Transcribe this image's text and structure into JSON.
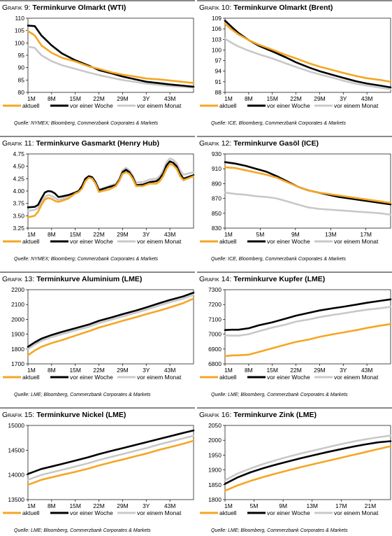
{
  "colors": {
    "aktuell": "#f5a623",
    "woche": "#000000",
    "monat": "#c8c8c8",
    "rule": "#888888"
  },
  "chart_data": [
    {
      "type": "line",
      "prefix": "Grafik 9:",
      "title": "Terminkurve Olmarkt (WTI)",
      "x_ticks": [
        "1M",
        "8M",
        "15M",
        "22M",
        "29M",
        "3Y",
        "43M"
      ],
      "ylim": [
        80,
        110
      ],
      "y_ticks": [
        80,
        85,
        90,
        95,
        100,
        105,
        110
      ],
      "x": [
        1,
        3,
        5,
        8,
        11,
        15,
        19,
        22,
        26,
        29,
        33,
        36,
        40,
        43,
        47,
        50
      ],
      "xlim": [
        1,
        50
      ],
      "series": [
        {
          "name": "aktuell",
          "values": [
            104.8,
            103,
            99,
            96,
            94,
            92.5,
            90.5,
            89.5,
            88,
            87.2,
            86.3,
            85.6,
            85.2,
            84.8,
            84.2,
            83.8
          ]
        },
        {
          "name": "vor einer Woche",
          "values": [
            107,
            106.8,
            103,
            99,
            95.8,
            93,
            90.8,
            89,
            87.6,
            86.4,
            85.2,
            84.3,
            83.7,
            83.2,
            82.7,
            82.3
          ]
        },
        {
          "name": "vor einem Monat",
          "values": [
            98.5,
            98,
            95,
            92.6,
            91,
            89.5,
            88,
            87,
            85.8,
            85,
            84.2,
            83.5,
            83,
            82.6,
            82.2,
            81.9
          ]
        }
      ],
      "source": "Quelle: NYMEX; Bloomberg, Commerzbank Corporates & Markets"
    },
    {
      "type": "line",
      "prefix": "Grafik 10:",
      "title": "Terminkurve Olmarkt (Brent)",
      "x_ticks": [
        "1M",
        "8M",
        "15M",
        "22M",
        "29M",
        "3Y",
        "43M"
      ],
      "ylim": [
        88,
        109
      ],
      "y_ticks": [
        88,
        91,
        94,
        97,
        100,
        103,
        106,
        109
      ],
      "x": [
        1,
        3,
        5,
        8,
        11,
        15,
        19,
        22,
        26,
        29,
        33,
        36,
        40,
        43,
        47,
        50
      ],
      "xlim": [
        1,
        50
      ],
      "series": [
        {
          "name": "aktuell",
          "values": [
            107.4,
            105.8,
            104.4,
            102.8,
            101.5,
            100.1,
            98.6,
            97.6,
            96.2,
            95.3,
            94.3,
            93.5,
            92.6,
            92,
            91.5,
            91
          ]
        },
        {
          "name": "vor einer Woche",
          "values": [
            108.3,
            106.5,
            104.8,
            102.8,
            101.2,
            99.6,
            97.9,
            96.5,
            95,
            94,
            92.9,
            92.1,
            91.1,
            90.5,
            89.9,
            89.4
          ]
        },
        {
          "name": "vor einem Monat",
          "values": [
            103.2,
            102,
            101,
            99.8,
            98.8,
            97.6,
            96.2,
            95.2,
            93.9,
            93.1,
            92.1,
            91.3,
            90.4,
            89.9,
            89.3,
            88.9
          ]
        }
      ],
      "source": "Quelle: ICE, Bloomberg, Commerzbank Corporates & Markets"
    },
    {
      "type": "line",
      "prefix": "Grafik 11:",
      "title": "Terminkurve Gasmarkt (Henry Hub)",
      "x_ticks": [
        "1M",
        "8M",
        "15M",
        "22M",
        "29M",
        "3Y",
        "43M"
      ],
      "ylim": [
        3.25,
        4.75
      ],
      "y_ticks": [
        3.25,
        3.5,
        3.75,
        4.0,
        4.25,
        4.5,
        4.75
      ],
      "x": [
        1,
        3,
        4,
        5,
        6,
        7,
        8,
        9,
        10,
        11,
        13,
        15,
        16,
        17,
        18,
        19,
        20,
        21,
        22,
        23,
        25,
        27,
        28,
        29,
        30,
        31,
        32,
        33,
        35,
        37,
        39,
        40,
        41,
        42,
        43,
        44,
        45,
        46,
        47,
        50
      ],
      "xlim": [
        1,
        50
      ],
      "series": [
        {
          "name": "aktuell",
          "values": [
            3.47,
            3.5,
            3.58,
            3.72,
            3.83,
            3.86,
            3.84,
            3.8,
            3.78,
            3.8,
            3.85,
            3.95,
            3.98,
            4.05,
            4.2,
            4.27,
            4.25,
            4.15,
            3.98,
            4.0,
            4.03,
            4.1,
            4.2,
            4.35,
            4.38,
            4.35,
            4.25,
            4.1,
            4.1,
            4.15,
            4.15,
            4.2,
            4.3,
            4.45,
            4.55,
            4.52,
            4.45,
            4.3,
            4.22,
            4.3
          ]
        },
        {
          "name": "vor einer Woche",
          "values": [
            3.67,
            3.68,
            3.72,
            3.85,
            3.97,
            4.0,
            3.99,
            3.95,
            3.88,
            3.89,
            3.92,
            3.97,
            4.0,
            4.1,
            4.25,
            4.3,
            4.28,
            4.18,
            4.02,
            4.04,
            4.08,
            4.12,
            4.22,
            4.38,
            4.43,
            4.38,
            4.28,
            4.12,
            4.13,
            4.18,
            4.2,
            4.25,
            4.35,
            4.52,
            4.6,
            4.57,
            4.5,
            4.35,
            4.25,
            4.32
          ]
        },
        {
          "name": "vor einem Monat",
          "values": [
            3.6,
            3.62,
            3.66,
            3.78,
            3.88,
            3.92,
            3.9,
            3.86,
            3.82,
            3.84,
            3.88,
            3.95,
            3.99,
            4.08,
            4.22,
            4.28,
            4.27,
            4.18,
            4.03,
            4.05,
            4.1,
            4.15,
            4.25,
            4.42,
            4.47,
            4.42,
            4.32,
            4.17,
            4.18,
            4.23,
            4.25,
            4.3,
            4.42,
            4.58,
            4.66,
            4.63,
            4.56,
            4.42,
            4.33,
            4.38
          ]
        }
      ],
      "source": "Quelle: NYMEX; Bloomberg; Commerzbank Corporates & Markets"
    },
    {
      "type": "line",
      "prefix": "Grafik 12:",
      "title": "Terminkurve Gasöl (ICE)",
      "x_ticks": [
        "1M",
        "5M",
        "9M",
        "13M",
        "17M"
      ],
      "ylim": [
        830,
        930
      ],
      "y_ticks": [
        830,
        850,
        870,
        890,
        910,
        930
      ],
      "x": [
        1,
        2,
        3,
        4,
        5,
        6,
        7,
        8,
        9,
        10,
        11,
        12,
        13,
        14,
        15,
        16,
        17
      ],
      "xlim": [
        1,
        17
      ],
      "series": [
        {
          "name": "aktuell",
          "values": [
            912,
            911,
            908,
            905,
            902,
            898,
            892,
            886,
            881,
            878,
            876,
            874,
            872,
            870,
            868,
            866,
            864
          ]
        },
        {
          "name": "vor einer Woche",
          "values": [
            919,
            917,
            914,
            910,
            906,
            900,
            893,
            886,
            881,
            878,
            875,
            872,
            870,
            868,
            866,
            864,
            862
          ]
        },
        {
          "name": "vor einem Monat",
          "values": [
            878,
            876,
            875,
            873,
            872,
            870,
            866,
            862,
            858,
            856,
            855,
            854,
            853,
            852,
            851,
            850,
            848
          ]
        }
      ],
      "source": "Quelle: ICE, Bloomberg, Commerzbank Corporates & Markets"
    },
    {
      "type": "line",
      "prefix": "Grafik 13:",
      "title": "Terminkurve Aluminium (LME)",
      "x_ticks": [
        "1M",
        "8M",
        "15M",
        "22M",
        "29M",
        "3Y",
        "43M"
      ],
      "ylim": [
        1700,
        2200
      ],
      "y_ticks": [
        1700,
        1800,
        1900,
        2000,
        2100,
        2200
      ],
      "x": [
        1,
        3,
        5,
        8,
        11,
        15,
        19,
        22,
        26,
        29,
        33,
        36,
        40,
        43,
        47,
        50
      ],
      "xlim": [
        1,
        50
      ],
      "series": [
        {
          "name": "aktuell",
          "values": [
            1758,
            1790,
            1815,
            1840,
            1860,
            1890,
            1920,
            1945,
            1970,
            1990,
            2015,
            2035,
            2060,
            2080,
            2110,
            2140
          ]
        },
        {
          "name": "vor einer Woche",
          "values": [
            1815,
            1845,
            1870,
            1895,
            1915,
            1940,
            1965,
            1990,
            2015,
            2035,
            2060,
            2080,
            2110,
            2130,
            2155,
            2180
          ]
        },
        {
          "name": "vor einem Monat",
          "values": [
            1800,
            1830,
            1855,
            1880,
            1900,
            1925,
            1950,
            1975,
            2000,
            2020,
            2045,
            2065,
            2095,
            2115,
            2140,
            2165
          ]
        }
      ],
      "source": "Quelle: LME; Bloomberg, Commerzbank Corporates & Markets"
    },
    {
      "type": "line",
      "prefix": "Grafik 14:",
      "title": "Terminkurve Kupfer (LME)",
      "x_ticks": [
        "1M",
        "8M",
        "15M",
        "22M",
        "29M",
        "3Y",
        "43M"
      ],
      "ylim": [
        6800,
        7300
      ],
      "y_ticks": [
        6800,
        6900,
        7000,
        7100,
        7200,
        7300
      ],
      "x": [
        1,
        3,
        5,
        8,
        11,
        15,
        19,
        22,
        26,
        29,
        33,
        36,
        40,
        43,
        47,
        50
      ],
      "xlim": [
        1,
        50
      ],
      "series": [
        {
          "name": "aktuell",
          "values": [
            6852,
            6857,
            6858,
            6862,
            6880,
            6905,
            6930,
            6948,
            6965,
            6982,
            7000,
            7012,
            7028,
            7042,
            7058,
            7068
          ]
        },
        {
          "name": "vor einer Woche",
          "values": [
            7028,
            7030,
            7030,
            7040,
            7060,
            7080,
            7105,
            7125,
            7145,
            7160,
            7175,
            7185,
            7200,
            7212,
            7225,
            7235
          ]
        },
        {
          "name": "vor einem Monat",
          "values": [
            6992,
            6990,
            6990,
            7000,
            7020,
            7045,
            7065,
            7085,
            7100,
            7115,
            7130,
            7140,
            7155,
            7165,
            7175,
            7185
          ]
        }
      ],
      "source": "Quelle: LME; Bloomberg, Commerzbank Corporates & Markets"
    },
    {
      "type": "line",
      "prefix": "Grafik 15:",
      "title": "Terminkurve Nickel (LME)",
      "x_ticks": [
        "1M",
        "8M",
        "15M",
        "22M",
        "29M",
        "3Y",
        "43M"
      ],
      "ylim": [
        13500,
        15000
      ],
      "y_ticks": [
        13500,
        14000,
        14500,
        15000
      ],
      "x": [
        1,
        3,
        5,
        8,
        11,
        15,
        19,
        22,
        26,
        29,
        33,
        36,
        40,
        43,
        47,
        50
      ],
      "xlim": [
        1,
        50
      ],
      "series": [
        {
          "name": "aktuell",
          "values": [
            13800,
            13850,
            13900,
            13950,
            14000,
            14060,
            14130,
            14190,
            14260,
            14310,
            14380,
            14430,
            14510,
            14560,
            14630,
            14690
          ]
        },
        {
          "name": "vor einer Woche",
          "values": [
            14020,
            14070,
            14120,
            14170,
            14220,
            14290,
            14360,
            14420,
            14490,
            14540,
            14610,
            14660,
            14730,
            14780,
            14850,
            14900
          ]
        },
        {
          "name": "vor einem Monat",
          "values": [
            13900,
            13950,
            14000,
            14050,
            14100,
            14170,
            14240,
            14300,
            14370,
            14420,
            14490,
            14540,
            14620,
            14670,
            14740,
            14790
          ]
        }
      ],
      "source": "Quelle: LME; Bloomberg, Commerzbank Corporates & Markets"
    },
    {
      "type": "line",
      "prefix": "Grafik 16:",
      "title": "Terminkurve Zink (LME)",
      "x_ticks": [
        "1M",
        "5M",
        "9M",
        "13M",
        "17M",
        "21M"
      ],
      "ylim": [
        1800,
        2050
      ],
      "y_ticks": [
        1800,
        1850,
        1900,
        1950,
        2000,
        2050
      ],
      "x": [
        1,
        3,
        5,
        7,
        9,
        11,
        13,
        15,
        17,
        19,
        21,
        23,
        25,
        27
      ],
      "xlim": [
        1,
        27
      ],
      "series": [
        {
          "name": "aktuell",
          "values": [
            1830,
            1848,
            1863,
            1876,
            1888,
            1899,
            1910,
            1920,
            1930,
            1940,
            1950,
            1960,
            1970,
            1980
          ]
        },
        {
          "name": "vor einer Woche",
          "values": [
            1853,
            1875,
            1892,
            1906,
            1918,
            1929,
            1940,
            1950,
            1960,
            1969,
            1978,
            1986,
            1993,
            1997
          ]
        },
        {
          "name": "vor einem Monat",
          "values": [
            1865,
            1888,
            1905,
            1920,
            1933,
            1945,
            1956,
            1966,
            1976,
            1986,
            1995,
            2003,
            2010,
            2016
          ]
        }
      ],
      "source": "Quelle: LME; Bloomberg, Commerzbank Corporates & Markets"
    }
  ]
}
